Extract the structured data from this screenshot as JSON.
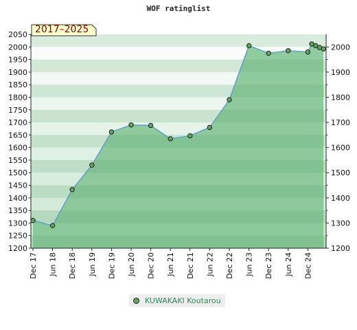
{
  "chart_data": {
    "type": "area",
    "title": "WOF ratinglist",
    "badge": "2017–2025",
    "ylim": [
      1200,
      2050
    ],
    "yticks_left": [
      1200,
      1250,
      1300,
      1350,
      1400,
      1450,
      1500,
      1550,
      1600,
      1650,
      1700,
      1750,
      1800,
      1850,
      1900,
      1950,
      2000,
      2050
    ],
    "yticks_right": [
      1200,
      1300,
      1400,
      1500,
      1600,
      1700,
      1800,
      1900,
      2000
    ],
    "xtick_labels": [
      "Dec 17",
      "Jun 18",
      "Dec 18",
      "Jun 19",
      "Dec 19",
      "Jun 20",
      "Dec 20",
      "Jun 21",
      "Dec 21",
      "Jun 22",
      "Dec 22",
      "Jun 23",
      "Dec 23",
      "Jun 24",
      "Dec 24"
    ],
    "series": [
      {
        "name": "KUWAKAKI Koutarou",
        "x": [
          0,
          1,
          2,
          3,
          4,
          5,
          6,
          7,
          8,
          9,
          10,
          11,
          12,
          13,
          14,
          14.2,
          14.4,
          14.6,
          14.8
        ],
        "values": [
          1310,
          1290,
          1433,
          1530,
          1662,
          1690,
          1688,
          1635,
          1647,
          1680,
          1790,
          2005,
          1975,
          1985,
          1980,
          2012,
          2005,
          1998,
          1992
        ]
      }
    ],
    "legend_position": "bottom-center",
    "colors": {
      "area": "#7fc28f",
      "line": "#5fa0c8",
      "marker": "#5fa55f",
      "badge_bg": "#ffffcc"
    }
  }
}
